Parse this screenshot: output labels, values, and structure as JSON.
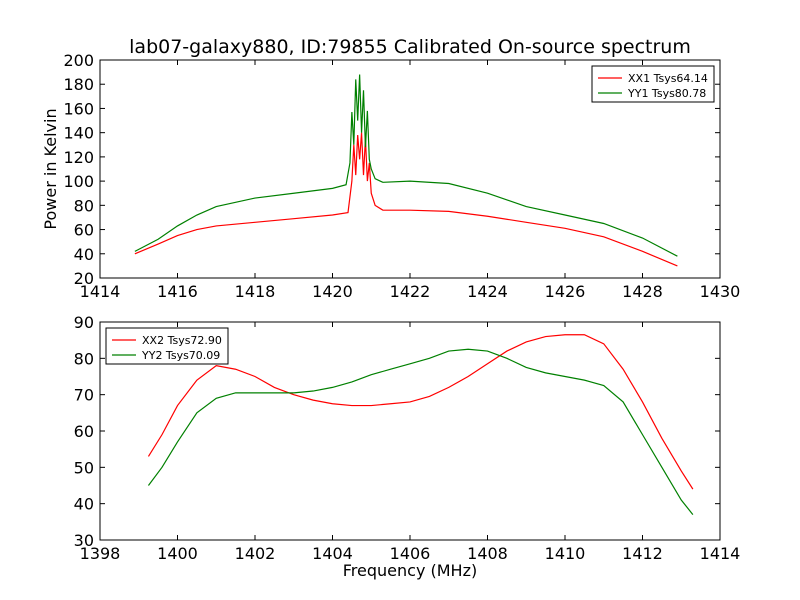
{
  "title": "lab07-galaxy880, ID:79855 Calibrated On-source spectrum",
  "chart_data": [
    {
      "type": "line",
      "ylabel": "Power in Kelvin",
      "xlabel": "",
      "xlim": [
        1414,
        1430
      ],
      "ylim": [
        20,
        200
      ],
      "xticks": [
        "1414",
        "1416",
        "1418",
        "1420",
        "1422",
        "1424",
        "1426",
        "1428",
        "1430"
      ],
      "yticks": [
        "20",
        "40",
        "60",
        "80",
        "100",
        "120",
        "140",
        "160",
        "180",
        "200"
      ],
      "legend_position": "top-right",
      "series": [
        {
          "name": "XX1 Tsys64.14",
          "color": "#ff0000",
          "x": [
            1414.9,
            1415.5,
            1416,
            1416.5,
            1417,
            1418,
            1419,
            1420,
            1420.4,
            1420.5,
            1420.55,
            1420.6,
            1420.65,
            1420.7,
            1420.75,
            1420.8,
            1420.85,
            1420.9,
            1420.95,
            1421.0,
            1421.1,
            1421.3,
            1422,
            1423,
            1424,
            1425,
            1426,
            1427,
            1428,
            1428.9
          ],
          "y": [
            40,
            48,
            55,
            60,
            63,
            66,
            69,
            72,
            74,
            100,
            130,
            105,
            138,
            118,
            140,
            105,
            135,
            100,
            115,
            90,
            80,
            76,
            76,
            75,
            71,
            66,
            61,
            54,
            42,
            30
          ]
        },
        {
          "name": "YY1 Tsys80.78",
          "color": "#008000",
          "x": [
            1414.9,
            1415.5,
            1416,
            1416.5,
            1417,
            1418,
            1419,
            1420,
            1420.35,
            1420.45,
            1420.5,
            1420.55,
            1420.6,
            1420.65,
            1420.7,
            1420.75,
            1420.8,
            1420.85,
            1420.9,
            1420.95,
            1421.0,
            1421.1,
            1421.3,
            1422,
            1423,
            1424,
            1425,
            1426,
            1427,
            1428,
            1428.9
          ],
          "y": [
            42,
            52,
            63,
            72,
            79,
            86,
            90,
            94,
            97,
            115,
            157,
            130,
            184,
            150,
            188,
            140,
            175,
            128,
            158,
            118,
            110,
            102,
            99,
            100,
            98,
            90,
            79,
            72,
            65,
            53,
            38
          ]
        }
      ]
    },
    {
      "type": "line",
      "ylabel": "",
      "xlabel": "Frequency (MHz)",
      "xlim": [
        1398,
        1414
      ],
      "ylim": [
        30,
        90
      ],
      "xticks": [
        "1398",
        "1400",
        "1402",
        "1404",
        "1406",
        "1408",
        "1410",
        "1412",
        "1414"
      ],
      "yticks": [
        "30",
        "40",
        "50",
        "60",
        "70",
        "80",
        "90"
      ],
      "legend_position": "top-left",
      "series": [
        {
          "name": "XX2 Tsys72.90",
          "color": "#ff0000",
          "x": [
            1399.25,
            1399.6,
            1400,
            1400.5,
            1401,
            1401.5,
            1402,
            1402.5,
            1403,
            1403.5,
            1404,
            1404.5,
            1405,
            1405.5,
            1406,
            1406.5,
            1407,
            1407.5,
            1408,
            1408.5,
            1409,
            1409.5,
            1410,
            1410.5,
            1411,
            1411.5,
            1412,
            1412.5,
            1413,
            1413.3
          ],
          "y": [
            53,
            59,
            67,
            74,
            78,
            77,
            75,
            72,
            70,
            68.5,
            67.5,
            67,
            67,
            67.5,
            68,
            69.5,
            72,
            75,
            78.5,
            82,
            84.5,
            86,
            86.5,
            86.5,
            84,
            77,
            68,
            58,
            49,
            44
          ]
        },
        {
          "name": "YY2 Tsys70.09",
          "color": "#008000",
          "x": [
            1399.25,
            1399.6,
            1400,
            1400.5,
            1401,
            1401.5,
            1402,
            1402.5,
            1403,
            1403.5,
            1404,
            1404.5,
            1405,
            1405.5,
            1406,
            1406.5,
            1407,
            1407.5,
            1408,
            1408.5,
            1409,
            1409.5,
            1410,
            1410.5,
            1411,
            1411.5,
            1412,
            1412.5,
            1413,
            1413.3
          ],
          "y": [
            45,
            50,
            57,
            65,
            69,
            70.5,
            70.5,
            70.5,
            70.5,
            71,
            72,
            73.5,
            75.5,
            77,
            78.5,
            80,
            82,
            82.5,
            82,
            80,
            77.5,
            76,
            75,
            74,
            72.5,
            68,
            59,
            50,
            41,
            37
          ]
        }
      ]
    }
  ]
}
